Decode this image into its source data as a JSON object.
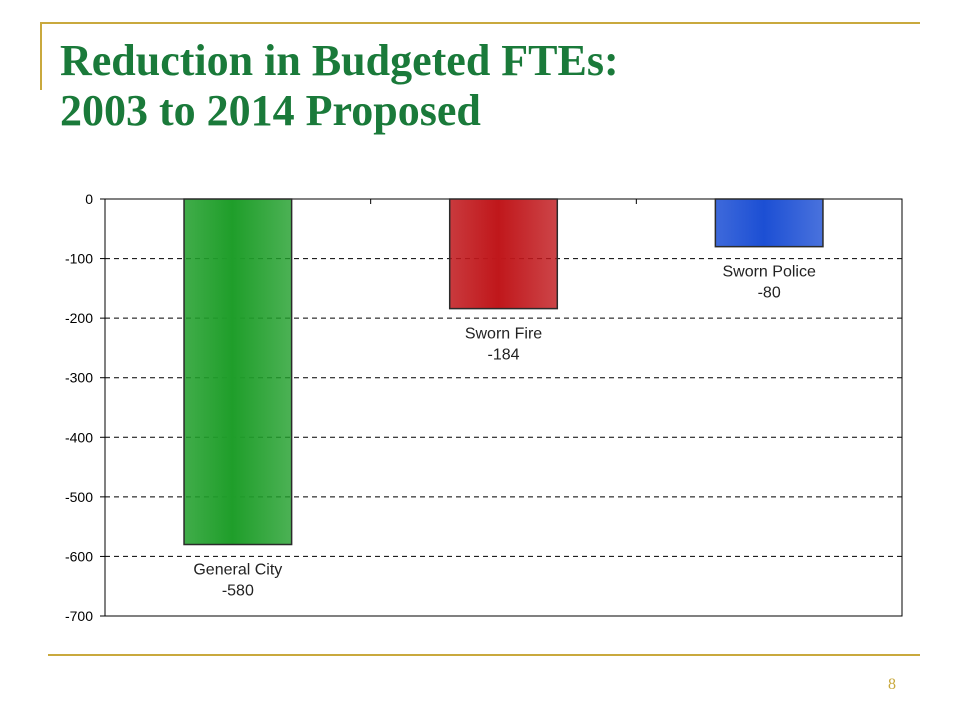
{
  "slide": {
    "title_line1": "Reduction in Budgeted FTEs:",
    "title_line2": "2003 to 2014 Proposed",
    "page_number": "8"
  },
  "colors": {
    "title": "#1a7a3a",
    "accent_line": "#c9a93e",
    "general_city": "#1f9e2a",
    "sworn_fire": "#c0171b",
    "sworn_police": "#1c4fd4"
  },
  "chart_data": {
    "type": "bar",
    "categories": [
      "General City",
      "Sworn Fire",
      "Sworn Police"
    ],
    "values": [
      -580,
      -184,
      -80
    ],
    "data_labels": [
      {
        "name": "General City",
        "value": "-580"
      },
      {
        "name": "Sworn Fire",
        "value": "-184"
      },
      {
        "name": "Sworn Police",
        "value": "-80"
      }
    ],
    "bar_colors": [
      "#1f9e2a",
      "#c0171b",
      "#1c4fd4"
    ],
    "ylim": [
      -700,
      0
    ],
    "yticks": [
      0,
      -100,
      -200,
      -300,
      -400,
      -500,
      -600,
      -700
    ],
    "grid": true,
    "legend": "none",
    "xlabel": "",
    "ylabel": ""
  }
}
